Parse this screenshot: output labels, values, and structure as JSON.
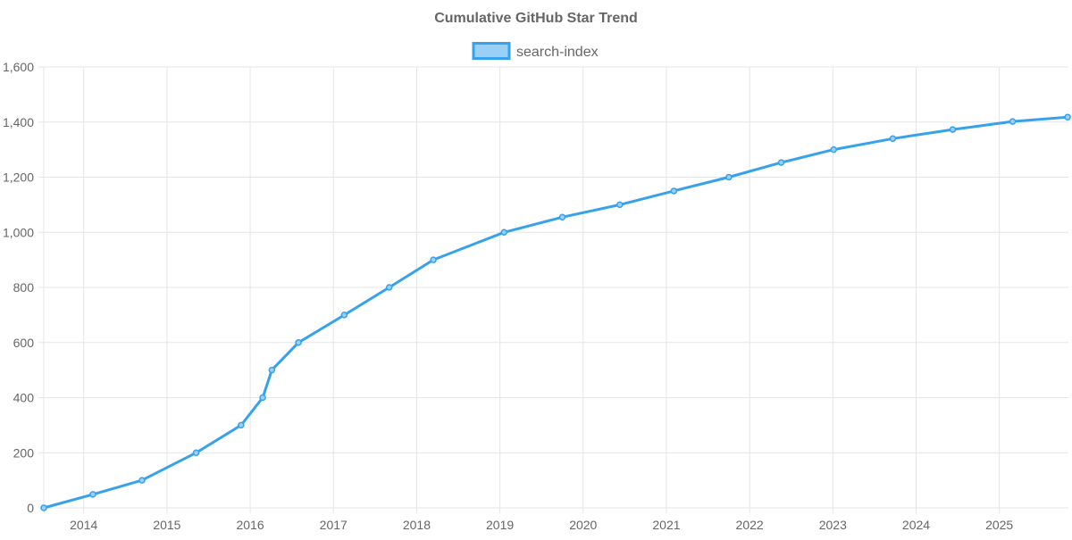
{
  "chart_data": {
    "type": "line",
    "title": "Cumulative GitHub Star Trend",
    "xlabel": "",
    "ylabel": "",
    "xlim": [
      2013.52,
      2025.83
    ],
    "ylim": [
      0,
      1600
    ],
    "x_ticks": [
      2014,
      2015,
      2016,
      2017,
      2018,
      2019,
      2020,
      2021,
      2022,
      2023,
      2024,
      2025
    ],
    "y_ticks": [
      0,
      200,
      400,
      600,
      800,
      1000,
      1200,
      1400,
      1600
    ],
    "y_tick_labels": [
      "0",
      "200",
      "400",
      "600",
      "800",
      "1,000",
      "1,200",
      "1,400",
      "1,600"
    ],
    "grid": true,
    "legend": "top-center",
    "colors": {
      "line": "#36a2eb",
      "fill": "#9ad0f5",
      "grid": "#e5e5e5",
      "text": "#666666"
    },
    "series": [
      {
        "name": "search-index",
        "x": [
          2013.52,
          2014.11,
          2014.7,
          2015.35,
          2015.89,
          2016.15,
          2016.26,
          2016.58,
          2017.13,
          2017.67,
          2018.2,
          2019.05,
          2019.75,
          2020.44,
          2021.09,
          2021.75,
          2022.38,
          2023.01,
          2023.72,
          2024.44,
          2025.16,
          2025.82
        ],
        "y": [
          0,
          49,
          100,
          200,
          300,
          400,
          500,
          600,
          700,
          800,
          900,
          1000,
          1055,
          1100,
          1150,
          1200,
          1253,
          1300,
          1340,
          1373,
          1402,
          1418
        ]
      }
    ]
  }
}
